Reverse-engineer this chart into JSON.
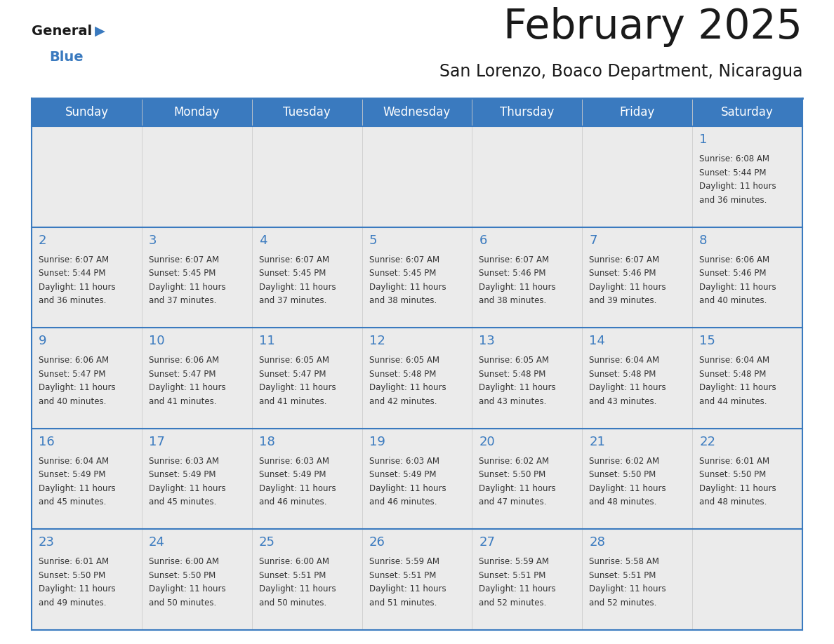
{
  "title": "February 2025",
  "subtitle": "San Lorenzo, Boaco Department, Nicaragua",
  "header_bg": "#3a7abf",
  "header_text": "#ffffff",
  "cell_bg": "#ebebeb",
  "grid_line_color": "#3a7abf",
  "day_number_color": "#3a7abf",
  "text_color": "#333333",
  "days_of_week": [
    "Sunday",
    "Monday",
    "Tuesday",
    "Wednesday",
    "Thursday",
    "Friday",
    "Saturday"
  ],
  "calendar_data": [
    [
      null,
      null,
      null,
      null,
      null,
      null,
      {
        "day": 1,
        "sunrise": "6:08 AM",
        "sunset": "5:44 PM",
        "daylight_line1": "11 hours",
        "daylight_line2": "and 36 minutes."
      }
    ],
    [
      {
        "day": 2,
        "sunrise": "6:07 AM",
        "sunset": "5:44 PM",
        "daylight_line1": "11 hours",
        "daylight_line2": "and 36 minutes."
      },
      {
        "day": 3,
        "sunrise": "6:07 AM",
        "sunset": "5:45 PM",
        "daylight_line1": "11 hours",
        "daylight_line2": "and 37 minutes."
      },
      {
        "day": 4,
        "sunrise": "6:07 AM",
        "sunset": "5:45 PM",
        "daylight_line1": "11 hours",
        "daylight_line2": "and 37 minutes."
      },
      {
        "day": 5,
        "sunrise": "6:07 AM",
        "sunset": "5:45 PM",
        "daylight_line1": "11 hours",
        "daylight_line2": "and 38 minutes."
      },
      {
        "day": 6,
        "sunrise": "6:07 AM",
        "sunset": "5:46 PM",
        "daylight_line1": "11 hours",
        "daylight_line2": "and 38 minutes."
      },
      {
        "day": 7,
        "sunrise": "6:07 AM",
        "sunset": "5:46 PM",
        "daylight_line1": "11 hours",
        "daylight_line2": "and 39 minutes."
      },
      {
        "day": 8,
        "sunrise": "6:06 AM",
        "sunset": "5:46 PM",
        "daylight_line1": "11 hours",
        "daylight_line2": "and 40 minutes."
      }
    ],
    [
      {
        "day": 9,
        "sunrise": "6:06 AM",
        "sunset": "5:47 PM",
        "daylight_line1": "11 hours",
        "daylight_line2": "and 40 minutes."
      },
      {
        "day": 10,
        "sunrise": "6:06 AM",
        "sunset": "5:47 PM",
        "daylight_line1": "11 hours",
        "daylight_line2": "and 41 minutes."
      },
      {
        "day": 11,
        "sunrise": "6:05 AM",
        "sunset": "5:47 PM",
        "daylight_line1": "11 hours",
        "daylight_line2": "and 41 minutes."
      },
      {
        "day": 12,
        "sunrise": "6:05 AM",
        "sunset": "5:48 PM",
        "daylight_line1": "11 hours",
        "daylight_line2": "and 42 minutes."
      },
      {
        "day": 13,
        "sunrise": "6:05 AM",
        "sunset": "5:48 PM",
        "daylight_line1": "11 hours",
        "daylight_line2": "and 43 minutes."
      },
      {
        "day": 14,
        "sunrise": "6:04 AM",
        "sunset": "5:48 PM",
        "daylight_line1": "11 hours",
        "daylight_line2": "and 43 minutes."
      },
      {
        "day": 15,
        "sunrise": "6:04 AM",
        "sunset": "5:48 PM",
        "daylight_line1": "11 hours",
        "daylight_line2": "and 44 minutes."
      }
    ],
    [
      {
        "day": 16,
        "sunrise": "6:04 AM",
        "sunset": "5:49 PM",
        "daylight_line1": "11 hours",
        "daylight_line2": "and 45 minutes."
      },
      {
        "day": 17,
        "sunrise": "6:03 AM",
        "sunset": "5:49 PM",
        "daylight_line1": "11 hours",
        "daylight_line2": "and 45 minutes."
      },
      {
        "day": 18,
        "sunrise": "6:03 AM",
        "sunset": "5:49 PM",
        "daylight_line1": "11 hours",
        "daylight_line2": "and 46 minutes."
      },
      {
        "day": 19,
        "sunrise": "6:03 AM",
        "sunset": "5:49 PM",
        "daylight_line1": "11 hours",
        "daylight_line2": "and 46 minutes."
      },
      {
        "day": 20,
        "sunrise": "6:02 AM",
        "sunset": "5:50 PM",
        "daylight_line1": "11 hours",
        "daylight_line2": "and 47 minutes."
      },
      {
        "day": 21,
        "sunrise": "6:02 AM",
        "sunset": "5:50 PM",
        "daylight_line1": "11 hours",
        "daylight_line2": "and 48 minutes."
      },
      {
        "day": 22,
        "sunrise": "6:01 AM",
        "sunset": "5:50 PM",
        "daylight_line1": "11 hours",
        "daylight_line2": "and 48 minutes."
      }
    ],
    [
      {
        "day": 23,
        "sunrise": "6:01 AM",
        "sunset": "5:50 PM",
        "daylight_line1": "11 hours",
        "daylight_line2": "and 49 minutes."
      },
      {
        "day": 24,
        "sunrise": "6:00 AM",
        "sunset": "5:50 PM",
        "daylight_line1": "11 hours",
        "daylight_line2": "and 50 minutes."
      },
      {
        "day": 25,
        "sunrise": "6:00 AM",
        "sunset": "5:51 PM",
        "daylight_line1": "11 hours",
        "daylight_line2": "and 50 minutes."
      },
      {
        "day": 26,
        "sunrise": "5:59 AM",
        "sunset": "5:51 PM",
        "daylight_line1": "11 hours",
        "daylight_line2": "and 51 minutes."
      },
      {
        "day": 27,
        "sunrise": "5:59 AM",
        "sunset": "5:51 PM",
        "daylight_line1": "11 hours",
        "daylight_line2": "and 52 minutes."
      },
      {
        "day": 28,
        "sunrise": "5:58 AM",
        "sunset": "5:51 PM",
        "daylight_line1": "11 hours",
        "daylight_line2": "and 52 minutes."
      },
      null
    ]
  ]
}
